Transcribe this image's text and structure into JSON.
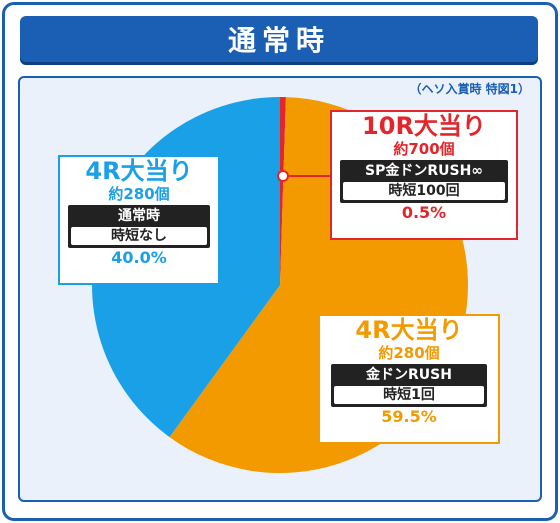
{
  "header": {
    "title": "通常時"
  },
  "note": "（ヘソ入賞時 特図1）",
  "chart_data": {
    "type": "pie",
    "slices": [
      {
        "name": "10R大当り",
        "value": 0.5,
        "color": "#e3262b",
        "prize": "約700個",
        "mode": "SP金ドンRUSH∞",
        "jitan": "時短100回",
        "label": "0.5%"
      },
      {
        "name": "4R大当り",
        "value": 59.5,
        "color": "#f29a00",
        "prize": "約280個",
        "mode": "金ドンRUSH",
        "jitan": "時短1回",
        "label": "59.5%"
      },
      {
        "name": "4R大当り",
        "value": 40.0,
        "color": "#1aa0e6",
        "prize": "約280個",
        "mode": "通常時",
        "jitan": "時短なし",
        "label": "40.0%"
      }
    ]
  }
}
